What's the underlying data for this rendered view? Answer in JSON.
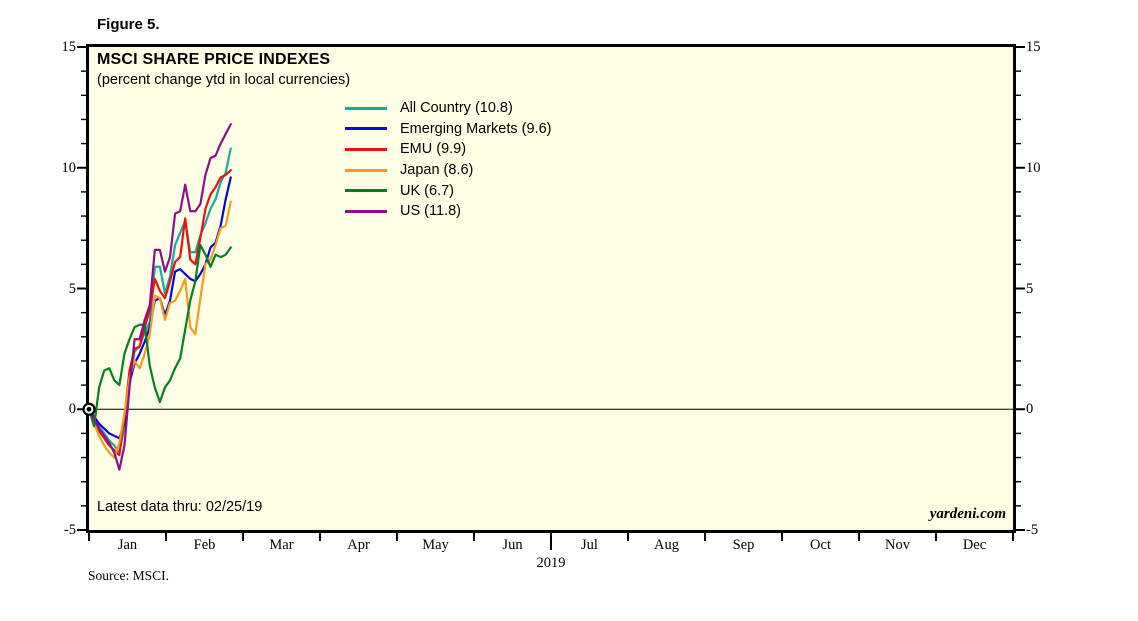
{
  "figure_label": "Figure 5.",
  "chart_data": {
    "type": "line",
    "title": "MSCI SHARE PRICE INDEXES",
    "subtitle": "(percent change ytd in local currencies)",
    "note": "Latest data thru: 02/25/19",
    "watermark": "yardeni.com",
    "source": "Source: MSCI.",
    "year_label": "2019",
    "plot_bg": "#FFFFE6",
    "axis_color": "#000000",
    "ylim": [
      -5,
      15
    ],
    "y_major_ticks": [
      15,
      10,
      5,
      0,
      -5
    ],
    "y_minor_step": 1,
    "zero_line": true,
    "origin_marker": "bullseye",
    "legend_position": "inside-top-center",
    "x_tick_labels": [
      "Jan",
      "Feb",
      "Mar",
      "Apr",
      "May",
      "Jun",
      "Jul",
      "Aug",
      "Sep",
      "Oct",
      "Nov",
      "Dec"
    ],
    "x_unit": "day_of_year",
    "x_range_days": 365,
    "days": [
      0,
      2,
      4,
      6,
      8,
      10,
      12,
      14,
      16,
      18,
      20,
      22,
      24,
      26,
      28,
      30,
      32,
      34,
      36,
      38,
      40,
      42,
      44,
      46,
      48,
      50,
      52,
      54,
      56
    ],
    "series": [
      {
        "name": "All Country",
        "legend_label": "All Country (10.8)",
        "ytd_pct": 10.8,
        "color": "#1BA8A5",
        "values": [
          0,
          -0.4,
          -0.7,
          -1.0,
          -1.3,
          -1.5,
          -1.8,
          -0.7,
          1.0,
          2.4,
          2.6,
          3.2,
          3.6,
          5.9,
          5.9,
          4.8,
          5.5,
          6.8,
          7.3,
          7.8,
          6.5,
          6.5,
          7.2,
          7.7,
          8.3,
          8.7,
          9.4,
          9.8,
          10.8
        ]
      },
      {
        "name": "Emerging Markets",
        "legend_label": "Emerging Markets (9.6)",
        "ytd_pct": 9.6,
        "color": "#0505DC",
        "values": [
          0,
          -0.3,
          -0.6,
          -0.8,
          -1.0,
          -1.1,
          -1.2,
          -0.6,
          1.1,
          1.9,
          2.3,
          2.8,
          3.4,
          4.5,
          4.6,
          3.9,
          4.5,
          5.7,
          5.8,
          5.6,
          5.4,
          5.3,
          5.6,
          6.0,
          6.7,
          6.9,
          7.6,
          8.7,
          9.6
        ]
      },
      {
        "name": "EMU",
        "legend_label": "EMU (9.9)",
        "ytd_pct": 9.9,
        "color": "#EE0F0F",
        "values": [
          0,
          -0.5,
          -0.9,
          -1.2,
          -1.5,
          -1.7,
          -1.9,
          -0.3,
          1.6,
          2.5,
          2.6,
          3.4,
          4.1,
          5.4,
          4.9,
          4.6,
          5.3,
          6.1,
          6.3,
          7.9,
          6.2,
          6.0,
          7.1,
          8.3,
          8.9,
          9.2,
          9.6,
          9.7,
          9.9
        ]
      },
      {
        "name": "Japan",
        "legend_label": "Japan (8.6)",
        "ytd_pct": 8.6,
        "color": "#F59B1E",
        "values": [
          0,
          -0.6,
          -1.1,
          -1.5,
          -1.8,
          -2.0,
          -1.4,
          -0.2,
          1.3,
          2.0,
          1.7,
          2.3,
          3.1,
          4.7,
          4.6,
          3.7,
          4.4,
          4.5,
          4.9,
          5.4,
          3.4,
          3.1,
          4.6,
          6.0,
          6.2,
          6.8,
          7.5,
          7.6,
          8.6
        ]
      },
      {
        "name": "UK",
        "legend_label": "UK (6.7)",
        "ytd_pct": 6.7,
        "color": "#077F20",
        "values": [
          0,
          -0.7,
          0.9,
          1.6,
          1.7,
          1.2,
          1.0,
          2.3,
          2.9,
          3.4,
          3.5,
          3.5,
          1.8,
          0.9,
          0.3,
          0.9,
          1.2,
          1.7,
          2.1,
          3.3,
          4.5,
          5.3,
          6.8,
          6.4,
          5.9,
          6.4,
          6.3,
          6.4,
          6.7
        ]
      },
      {
        "name": "US",
        "legend_label": "US (11.8)",
        "ytd_pct": 11.8,
        "color": "#8C0F8C",
        "values": [
          0,
          -0.4,
          -0.8,
          -1.1,
          -1.4,
          -1.8,
          -2.5,
          -1.5,
          0.9,
          2.9,
          2.9,
          3.7,
          4.3,
          6.6,
          6.6,
          5.7,
          6.3,
          8.1,
          8.2,
          9.3,
          8.2,
          8.2,
          8.5,
          9.7,
          10.4,
          10.5,
          11.0,
          11.4,
          11.8
        ]
      }
    ]
  }
}
